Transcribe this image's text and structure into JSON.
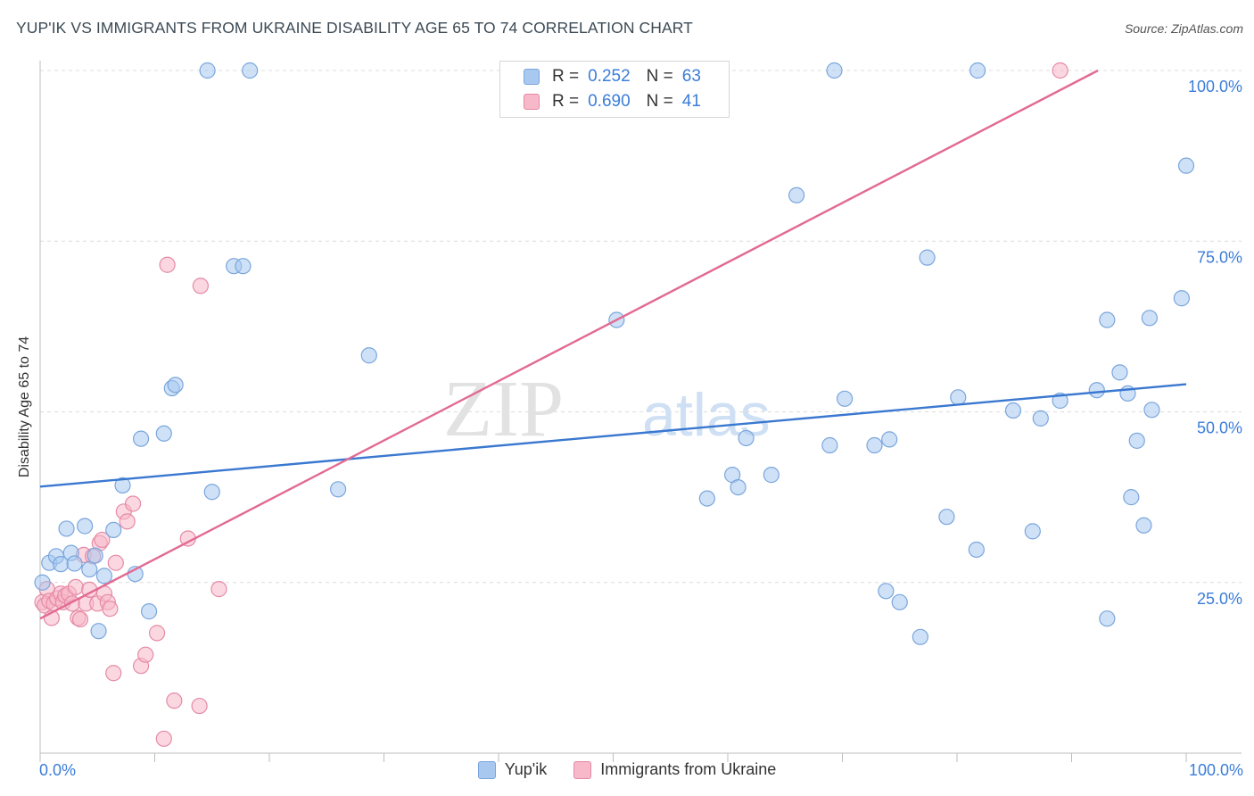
{
  "header": {
    "title": "YUP'IK VS IMMIGRANTS FROM UKRAINE DISABILITY AGE 65 TO 74 CORRELATION CHART",
    "source": "Source: ZipAtlas.com"
  },
  "watermark": {
    "zip": "ZIP",
    "atlas": "atlas"
  },
  "legend": {
    "rows": [
      {
        "r_label": "R =",
        "r_value": "0.252",
        "n_label": "N =",
        "n_value": "63",
        "color": "#a8c8f0",
        "border": "#7aa6dc"
      },
      {
        "r_label": "R =",
        "r_value": "0.690",
        "n_label": "N =",
        "n_value": "41",
        "color": "#f7b8c9",
        "border": "#e58aa5"
      }
    ]
  },
  "bottom_legend": {
    "series1": "Yup'ik",
    "series2": "Immigrants from Ukraine"
  },
  "x_axis": {
    "min_label": "0.0%",
    "max_label": "100.0%"
  },
  "chart_data": {
    "type": "scatter",
    "title": "YUP'IK VS IMMIGRANTS FROM UKRAINE DISABILITY AGE 65 TO 74 CORRELATION CHART",
    "xlabel": "",
    "ylabel": "Disability Age 65 to 74",
    "xlim": [
      0,
      100
    ],
    "ylim": [
      0,
      100
    ],
    "y_ticks": [
      {
        "value": 25,
        "label": "25.0%"
      },
      {
        "value": 50,
        "label": "50.0%"
      },
      {
        "value": 75,
        "label": "75.0%"
      },
      {
        "value": 100,
        "label": "100.0%"
      }
    ],
    "series": [
      {
        "name": "Yup'ik",
        "color": "#a8c8f0",
        "stroke": "#7aa6dc",
        "line_color": "#3a78d0",
        "trend": {
          "x0": 0,
          "y0": 40.6,
          "x1": 100,
          "y1": 56.2
        },
        "points": [
          [
            0.2,
            26.0
          ],
          [
            0.8,
            29.0
          ],
          [
            1.4,
            30.0
          ],
          [
            1.8,
            28.8
          ],
          [
            2.3,
            34.2
          ],
          [
            2.7,
            30.5
          ],
          [
            3.0,
            28.9
          ],
          [
            3.9,
            34.6
          ],
          [
            4.3,
            28.0
          ],
          [
            4.8,
            30.1
          ],
          [
            5.1,
            18.6
          ],
          [
            5.6,
            27.0
          ],
          [
            6.4,
            34.0
          ],
          [
            7.2,
            40.8
          ],
          [
            8.3,
            27.3
          ],
          [
            8.8,
            47.9
          ],
          [
            9.5,
            21.6
          ],
          [
            10.8,
            48.7
          ],
          [
            11.5,
            55.6
          ],
          [
            11.8,
            56.1
          ],
          [
            14.6,
            104.0
          ],
          [
            15.0,
            39.8
          ],
          [
            16.9,
            74.2
          ],
          [
            17.7,
            74.2
          ],
          [
            18.3,
            104.0
          ],
          [
            26.0,
            40.2
          ],
          [
            28.7,
            60.6
          ],
          [
            50.3,
            66.0
          ],
          [
            58.2,
            38.8
          ],
          [
            60.4,
            42.4
          ],
          [
            60.9,
            40.5
          ],
          [
            61.6,
            48.0
          ],
          [
            63.8,
            42.4
          ],
          [
            66.0,
            85.0
          ],
          [
            68.9,
            46.9
          ],
          [
            69.3,
            104.0
          ],
          [
            70.2,
            54.0
          ],
          [
            72.8,
            46.9
          ],
          [
            73.8,
            24.7
          ],
          [
            74.1,
            47.8
          ],
          [
            75.0,
            23.0
          ],
          [
            76.8,
            17.7
          ],
          [
            77.4,
            75.5
          ],
          [
            79.1,
            36.0
          ],
          [
            80.1,
            54.2
          ],
          [
            81.7,
            31.0
          ],
          [
            81.8,
            104.0
          ],
          [
            84.9,
            52.2
          ],
          [
            86.6,
            33.8
          ],
          [
            87.3,
            51.0
          ],
          [
            89.0,
            53.7
          ],
          [
            92.2,
            55.3
          ],
          [
            93.1,
            20.5
          ],
          [
            93.1,
            66.0
          ],
          [
            94.2,
            58.0
          ],
          [
            94.9,
            54.8
          ],
          [
            95.2,
            39.0
          ],
          [
            95.7,
            47.6
          ],
          [
            96.3,
            34.7
          ],
          [
            96.8,
            66.3
          ],
          [
            97.0,
            52.3
          ],
          [
            99.6,
            69.3
          ],
          [
            100.0,
            89.5
          ]
        ]
      },
      {
        "name": "Immigrants from Ukraine",
        "color": "#f7b8c9",
        "stroke": "#e58aa5",
        "line_color": "#e26a92",
        "trend": {
          "x0": 0,
          "y0": 20.5,
          "x1": 92.3,
          "y1": 104.0
        },
        "points": [
          [
            0.2,
            23.0
          ],
          [
            0.4,
            22.5
          ],
          [
            0.6,
            25.0
          ],
          [
            0.8,
            23.2
          ],
          [
            1.0,
            20.6
          ],
          [
            1.2,
            22.8
          ],
          [
            1.5,
            23.6
          ],
          [
            1.8,
            24.3
          ],
          [
            2.0,
            23.0
          ],
          [
            2.2,
            24.0
          ],
          [
            2.5,
            24.3
          ],
          [
            2.8,
            22.8
          ],
          [
            3.1,
            25.3
          ],
          [
            3.3,
            20.6
          ],
          [
            3.5,
            20.4
          ],
          [
            3.8,
            30.2
          ],
          [
            4.0,
            22.8
          ],
          [
            4.3,
            24.9
          ],
          [
            4.6,
            30.0
          ],
          [
            5.0,
            22.8
          ],
          [
            5.2,
            32.0
          ],
          [
            5.4,
            32.5
          ],
          [
            5.6,
            24.3
          ],
          [
            5.9,
            23.0
          ],
          [
            6.1,
            22.0
          ],
          [
            6.4,
            12.2
          ],
          [
            6.6,
            29.0
          ],
          [
            7.3,
            36.8
          ],
          [
            7.6,
            35.3
          ],
          [
            8.1,
            38.0
          ],
          [
            8.8,
            13.3
          ],
          [
            9.2,
            15.0
          ],
          [
            10.2,
            18.3
          ],
          [
            10.8,
            2.2
          ],
          [
            11.1,
            74.4
          ],
          [
            11.7,
            8.0
          ],
          [
            12.9,
            32.7
          ],
          [
            13.9,
            7.2
          ],
          [
            14.0,
            71.2
          ],
          [
            15.6,
            25.0
          ],
          [
            89.0,
            104.0
          ]
        ]
      }
    ]
  }
}
